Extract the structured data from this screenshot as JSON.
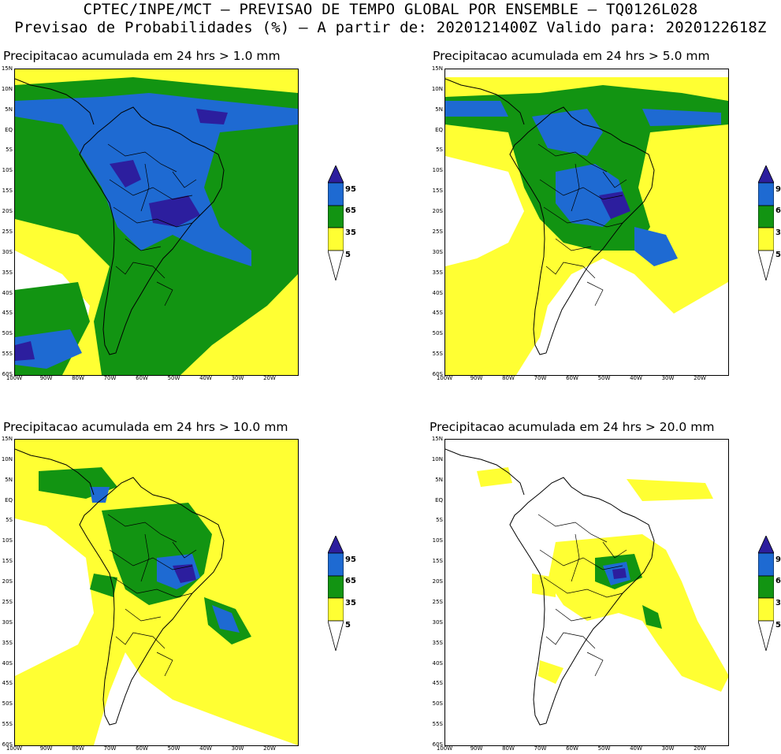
{
  "header": {
    "line1": "CPTEC/INPE/MCT — PREVISAO DE TEMPO GLOBAL POR ENSEMBLE — TQ0126L028",
    "line2": "Previsao de Probabilidades (%) —  A partir de: 2020121400Z  Valido para: 2020122618Z"
  },
  "colors": {
    "level_5": "#ffff33",
    "level_35": "#129412",
    "level_65": "#1e6ad2",
    "level_95": "#2c1e9e",
    "coast": "#000000"
  },
  "colorbar_labels": [
    "95",
    "65",
    "35",
    "5"
  ],
  "lat_labels": [
    "15N",
    "10N",
    "5N",
    "EQ",
    "5S",
    "10S",
    "15S",
    "20S",
    "25S",
    "30S",
    "35S",
    "40S",
    "45S",
    "50S",
    "55S",
    "60S"
  ],
  "lon_labels": [
    "100W",
    "90W",
    "80W",
    "70W",
    "60W",
    "50W",
    "40W",
    "30W",
    "20W"
  ],
  "panels": [
    {
      "title": "Precipitacao acumulada em 24 hrs > 1.0 mm",
      "threshold": "1.0"
    },
    {
      "title": "Precipitacao acumulada em 24 hrs > 5.0 mm",
      "threshold": "5.0"
    },
    {
      "title": "Precipitacao acumulada em 24 hrs > 10.0 mm",
      "threshold": "10.0"
    },
    {
      "title": "Precipitacao acumulada em 24 hrs > 20.0 mm",
      "threshold": "20.0"
    }
  ]
}
